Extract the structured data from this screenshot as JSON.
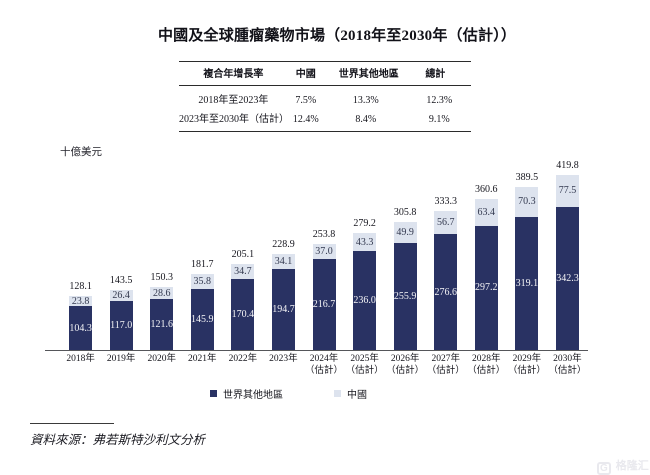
{
  "title": "中國及全球腫瘤藥物市場（2018年至2030年（估計））",
  "cagr_table": {
    "headers": [
      "複合年增長率",
      "中國",
      "世界其他地區",
      "總計"
    ],
    "rows": [
      {
        "period": "2018年至2023年",
        "china": "7.5%",
        "rest_of_world": "13.3%",
        "total": "12.3%"
      },
      {
        "period": "2023年至2030年（估計）",
        "china": "12.4%",
        "rest_of_world": "8.4%",
        "total": "9.1%"
      }
    ]
  },
  "chart_data": {
    "type": "bar",
    "stacked": true,
    "title": "中國及全球腫瘤藥物市場（2018年至2030年（估計））",
    "ylabel": "十億美元",
    "xlabel": "",
    "grid": false,
    "legend_position": "bottom",
    "ylim": [
      0,
      440
    ],
    "categories": [
      "2018年",
      "2019年",
      "2020年",
      "2021年",
      "2022年",
      "2023年",
      "2024年（估計）",
      "2025年（估計）",
      "2026年（估計）",
      "2027年（估計）",
      "2028年（估計）",
      "2029年（估計）",
      "2030年（估計）"
    ],
    "series": [
      {
        "name": "世界其他地區",
        "color": "#293263",
        "label_color": "#f4f4f6",
        "values": [
          "104.3",
          "117.0",
          "121.6",
          "145.9",
          "170.4",
          "194.7",
          "216.7",
          "236.0",
          "255.9",
          "276.6",
          "297.2",
          "319.1",
          "342.3"
        ]
      },
      {
        "name": "中國",
        "color": "#dde3ee",
        "label_color": "#33394f",
        "values": [
          "23.8",
          "26.4",
          "28.6",
          "35.8",
          "34.7",
          "34.1",
          "37.0",
          "43.3",
          "49.9",
          "56.7",
          "63.4",
          "70.3",
          "77.5"
        ]
      }
    ],
    "totals": [
      "128.1",
      "143.5",
      "150.3",
      "181.7",
      "205.1",
      "228.9",
      "253.8",
      "279.2",
      "305.8",
      "333.3",
      "360.6",
      "389.5",
      "419.8"
    ]
  },
  "legend": {
    "items": [
      {
        "label": "世界其他地區",
        "color": "#293263"
      },
      {
        "label": "中國",
        "color": "#dde3ee"
      }
    ]
  },
  "source_note": "資料來源：弗若斯特沙利文分析",
  "watermark": {
    "logo": "G",
    "text": "格隆汇"
  }
}
